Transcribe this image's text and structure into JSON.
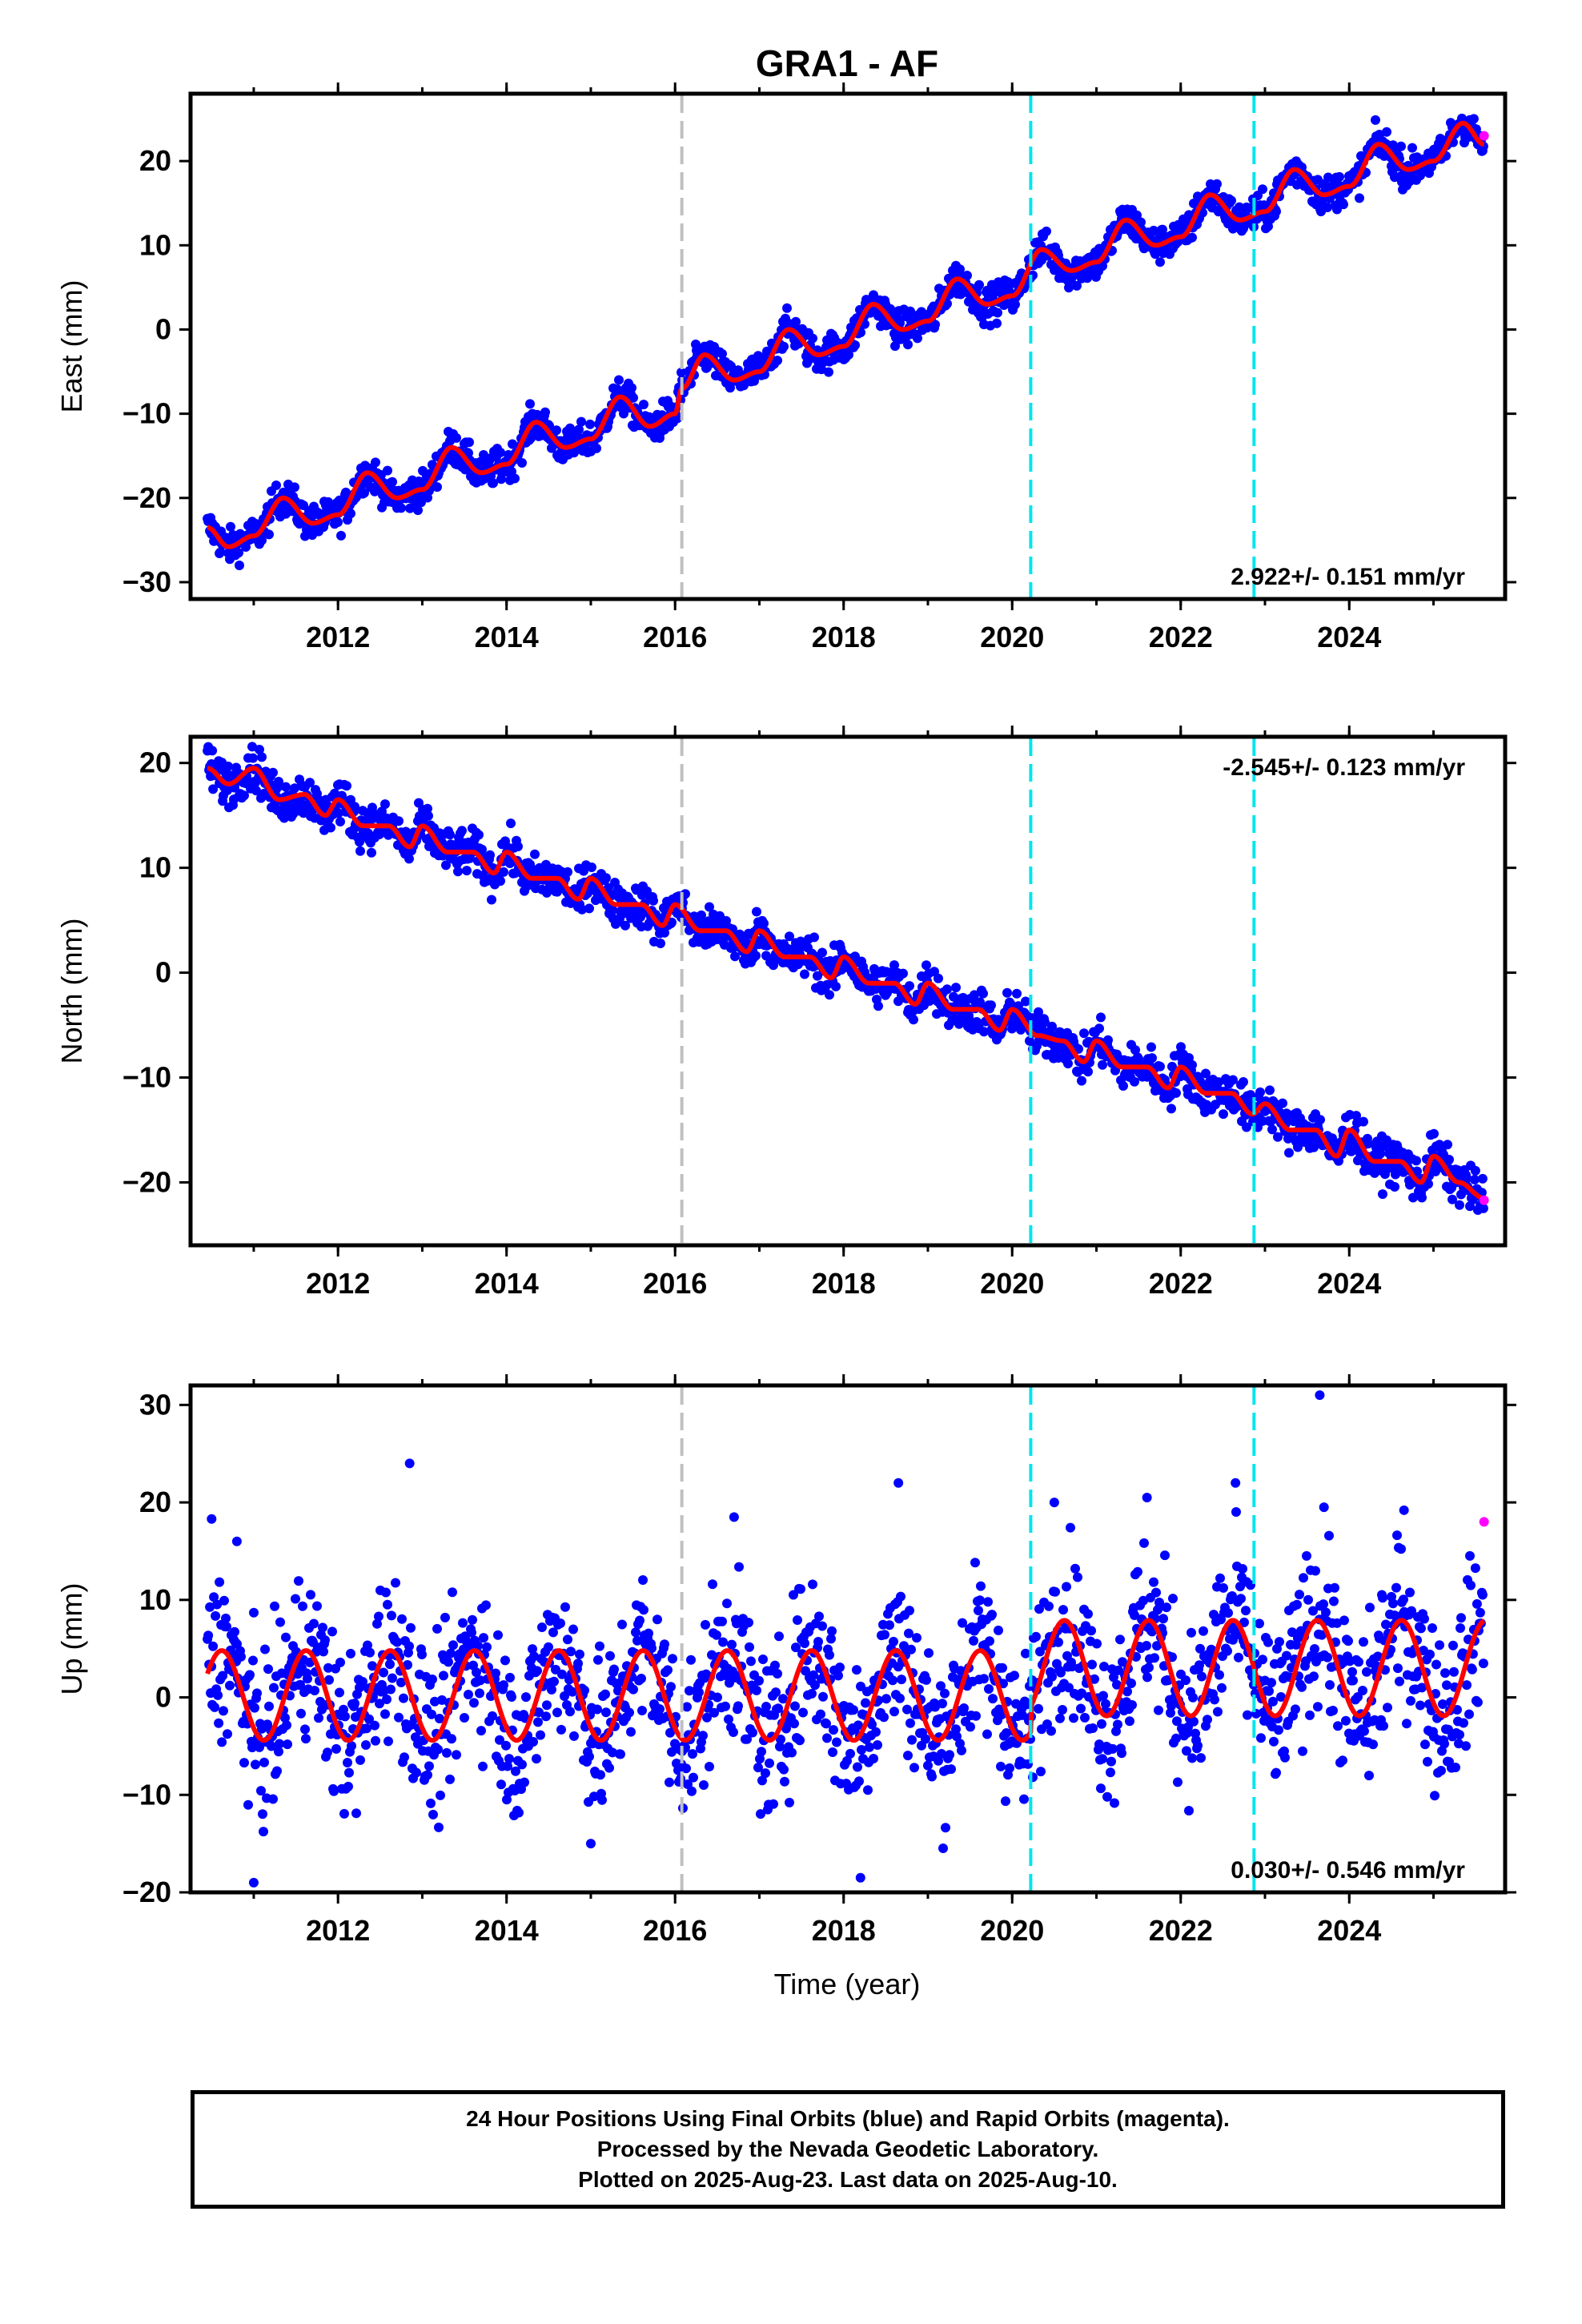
{
  "chart_data": [
    {
      "type": "scatter",
      "title": "GRA1 - AF",
      "ylabel": "East (mm)",
      "xlim": [
        2010.25,
        2025.85
      ],
      "ylim": [
        -32,
        28
      ],
      "yticks": [
        -30,
        -20,
        -10,
        0,
        10,
        20
      ],
      "xticks": [
        2012,
        2014,
        2016,
        2018,
        2020,
        2022,
        2024
      ],
      "rate_label": "2.922+/- 0.151 mm/yr",
      "rate_position": "bottom-right",
      "model_points": [
        [
          2010.45,
          -23.5
        ],
        [
          2010.7,
          -25.8
        ],
        [
          2011.0,
          -24.5
        ],
        [
          2011.35,
          -20
        ],
        [
          2011.7,
          -23
        ],
        [
          2012.0,
          -22
        ],
        [
          2012.35,
          -17
        ],
        [
          2012.7,
          -20
        ],
        [
          2013.0,
          -19
        ],
        [
          2013.35,
          -14
        ],
        [
          2013.7,
          -17
        ],
        [
          2014.0,
          -16
        ],
        [
          2014.35,
          -11
        ],
        [
          2014.7,
          -14
        ],
        [
          2015.0,
          -13
        ],
        [
          2015.35,
          -8
        ],
        [
          2015.7,
          -11.5
        ],
        [
          2016.0,
          -10
        ],
        [
          2016.08,
          -7
        ],
        [
          2016.35,
          -3
        ],
        [
          2016.7,
          -6
        ],
        [
          2017.0,
          -5
        ],
        [
          2017.35,
          0
        ],
        [
          2017.7,
          -3
        ],
        [
          2018.0,
          -2
        ],
        [
          2018.35,
          3
        ],
        [
          2018.7,
          0
        ],
        [
          2019.0,
          1
        ],
        [
          2019.35,
          6
        ],
        [
          2019.7,
          3
        ],
        [
          2020.0,
          4
        ],
        [
          2020.35,
          9.5
        ],
        [
          2020.7,
          7
        ],
        [
          2021.0,
          8
        ],
        [
          2021.35,
          13
        ],
        [
          2021.7,
          10
        ],
        [
          2022.0,
          11
        ],
        [
          2022.35,
          16
        ],
        [
          2022.7,
          13
        ],
        [
          2023.0,
          14
        ],
        [
          2023.35,
          19
        ],
        [
          2023.7,
          16
        ],
        [
          2024.0,
          17
        ],
        [
          2024.35,
          22
        ],
        [
          2024.7,
          19
        ],
        [
          2025.0,
          20
        ],
        [
          2025.35,
          24.5
        ],
        [
          2025.6,
          22
        ]
      ],
      "rapid_points": [
        [
          2025.6,
          23
        ]
      ]
    },
    {
      "type": "scatter",
      "ylabel": "North (mm)",
      "xlim": [
        2010.25,
        2025.85
      ],
      "ylim": [
        -26,
        22.5
      ],
      "yticks": [
        -20,
        -10,
        0,
        10,
        20
      ],
      "xticks": [
        2012,
        2014,
        2016,
        2018,
        2020,
        2022,
        2024
      ],
      "rate_label": "-2.545+/- 0.123 mm/yr",
      "rate_position": "top-right",
      "model_points": [
        [
          2010.45,
          19.5
        ],
        [
          2010.7,
          18
        ],
        [
          2011.0,
          19.5
        ],
        [
          2011.3,
          16.5
        ],
        [
          2011.6,
          17
        ],
        [
          2011.85,
          15
        ],
        [
          2012.0,
          16.5
        ],
        [
          2012.3,
          14
        ],
        [
          2012.6,
          14
        ],
        [
          2012.85,
          12
        ],
        [
          2013.0,
          14
        ],
        [
          2013.3,
          11.5
        ],
        [
          2013.6,
          11.5
        ],
        [
          2013.85,
          9.5
        ],
        [
          2014.0,
          11.5
        ],
        [
          2014.3,
          9
        ],
        [
          2014.6,
          9
        ],
        [
          2014.85,
          7
        ],
        [
          2015.0,
          9
        ],
        [
          2015.3,
          6.5
        ],
        [
          2015.6,
          6.5
        ],
        [
          2015.85,
          4.5
        ],
        [
          2016.0,
          6.5
        ],
        [
          2016.3,
          4
        ],
        [
          2016.6,
          4
        ],
        [
          2016.85,
          2
        ],
        [
          2017.0,
          4
        ],
        [
          2017.3,
          1.5
        ],
        [
          2017.6,
          1.5
        ],
        [
          2017.85,
          -0.5
        ],
        [
          2018.0,
          1.5
        ],
        [
          2018.3,
          -1
        ],
        [
          2018.6,
          -1
        ],
        [
          2018.85,
          -3
        ],
        [
          2019.0,
          -1
        ],
        [
          2019.3,
          -3.5
        ],
        [
          2019.6,
          -3.5
        ],
        [
          2019.85,
          -5.5
        ],
        [
          2020.0,
          -3.5
        ],
        [
          2020.3,
          -6
        ],
        [
          2020.6,
          -6.5
        ],
        [
          2020.85,
          -8.5
        ],
        [
          2021.0,
          -6.5
        ],
        [
          2021.3,
          -9
        ],
        [
          2021.6,
          -9
        ],
        [
          2021.85,
          -11
        ],
        [
          2022.0,
          -9
        ],
        [
          2022.3,
          -11.5
        ],
        [
          2022.6,
          -11.5
        ],
        [
          2022.85,
          -13.5
        ],
        [
          2023.0,
          -12.5
        ],
        [
          2023.3,
          -15
        ],
        [
          2023.6,
          -15
        ],
        [
          2023.85,
          -17.5
        ],
        [
          2024.0,
          -15
        ],
        [
          2024.3,
          -18
        ],
        [
          2024.6,
          -18
        ],
        [
          2024.85,
          -20
        ],
        [
          2025.0,
          -17.5
        ],
        [
          2025.3,
          -20
        ],
        [
          2025.6,
          -21.5
        ]
      ],
      "rapid_points": [
        [
          2025.6,
          -21.7
        ]
      ]
    },
    {
      "type": "scatter",
      "ylabel": "Up (mm)",
      "xlabel": "Time (year)",
      "xlim": [
        2010.25,
        2025.85
      ],
      "ylim": [
        -20,
        32
      ],
      "yticks": [
        -20,
        -10,
        0,
        10,
        20,
        30
      ],
      "xticks": [
        2012,
        2014,
        2016,
        2018,
        2020,
        2022,
        2024
      ],
      "rate_label": "0.030+/- 0.546 mm/yr",
      "rate_position": "bottom-right",
      "model_amplitude": 4.6,
      "model_offset_before_2020_2": 0.2,
      "model_offset_after_2020_2": 3.0,
      "model_peak_phase_year": 0.62,
      "rapid_points": [
        [
          2025.6,
          18
        ]
      ],
      "outliers": [
        [
          2010.5,
          18.3
        ],
        [
          2010.8,
          16
        ],
        [
          2011.0,
          -19
        ],
        [
          2012.85,
          24
        ],
        [
          2015.0,
          -15
        ],
        [
          2016.7,
          18.5
        ],
        [
          2018.2,
          -18.5
        ],
        [
          2018.65,
          22
        ],
        [
          2020.5,
          20
        ],
        [
          2021.6,
          20.5
        ],
        [
          2022.65,
          22
        ],
        [
          2023.65,
          31
        ],
        [
          2023.7,
          19.5
        ],
        [
          2024.65,
          19.2
        ]
      ]
    }
  ],
  "event_lines": [
    {
      "year": 2016.08,
      "color": "#c0c0c0"
    },
    {
      "year": 2020.22,
      "color": "#00e5ee"
    },
    {
      "year": 2022.87,
      "color": "#00e5ee"
    }
  ],
  "colors": {
    "final": "#0000ff",
    "rapid": "#ff00ff",
    "model": "#ff0000"
  },
  "footer": {
    "line1": "24 Hour Positions Using Final Orbits (blue) and Rapid Orbits (magenta).",
    "line2": "Processed by the Nevada Geodetic Laboratory.",
    "line3": "Plotted on 2025-Aug-23. Last data on 2025-Aug-10."
  }
}
